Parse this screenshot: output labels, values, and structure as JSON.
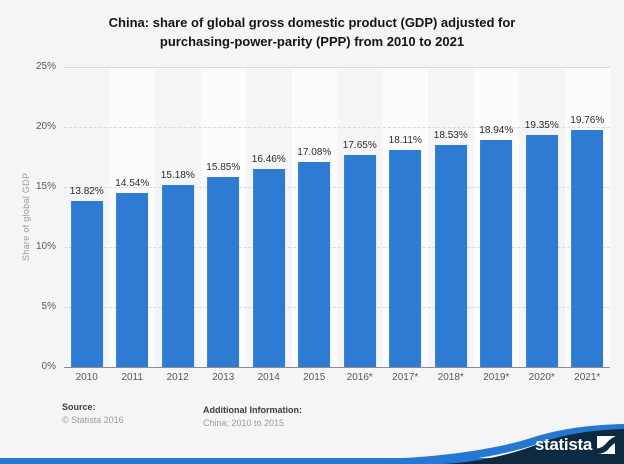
{
  "title": {
    "line1": "China: share of global gross domestic product (GDP) adjusted for",
    "line2": "purchasing-power-parity (PPP) from 2010 to 2021"
  },
  "chart_data": {
    "type": "bar",
    "title": "China: share of global gross domestic product (GDP) adjusted for purchasing-power-parity (PPP) from 2010 to 2021",
    "categories": [
      "2010",
      "2011",
      "2012",
      "2013",
      "2014",
      "2015",
      "2016*",
      "2017*",
      "2018*",
      "2019*",
      "2020*",
      "2021*"
    ],
    "values": [
      13.82,
      14.54,
      15.18,
      15.85,
      16.46,
      17.08,
      17.65,
      18.11,
      18.53,
      18.94,
      19.35,
      19.76
    ],
    "value_labels": [
      "13.82%",
      "14.54%",
      "15.18%",
      "15.85%",
      "16.46%",
      "17.08%",
      "17.65%",
      "18.11%",
      "18.53%",
      "18.94%",
      "19.35%",
      "19.76%"
    ],
    "xlabel": "",
    "ylabel": "Share of global GDP",
    "ylim": [
      0,
      25
    ],
    "ytick_step": 5,
    "ytick_labels": [
      "0%",
      "5%",
      "10%",
      "15%",
      "20%",
      "25%"
    ],
    "grid": true,
    "legend": false,
    "bar_color": "#2e7bd3"
  },
  "footer": {
    "source_label": "Source:",
    "source_value": "© Statista 2016",
    "additional_label": "Additional Information:",
    "additional_value": "China; 2010 to 2015"
  },
  "branding": {
    "logo_text": "statista"
  },
  "colors": {
    "bar": "#2e7bd3",
    "navy": "#0d2a40",
    "swoosh": "#2577d4",
    "page_background": "#f5f5f7",
    "band": "#fbfbfd"
  }
}
